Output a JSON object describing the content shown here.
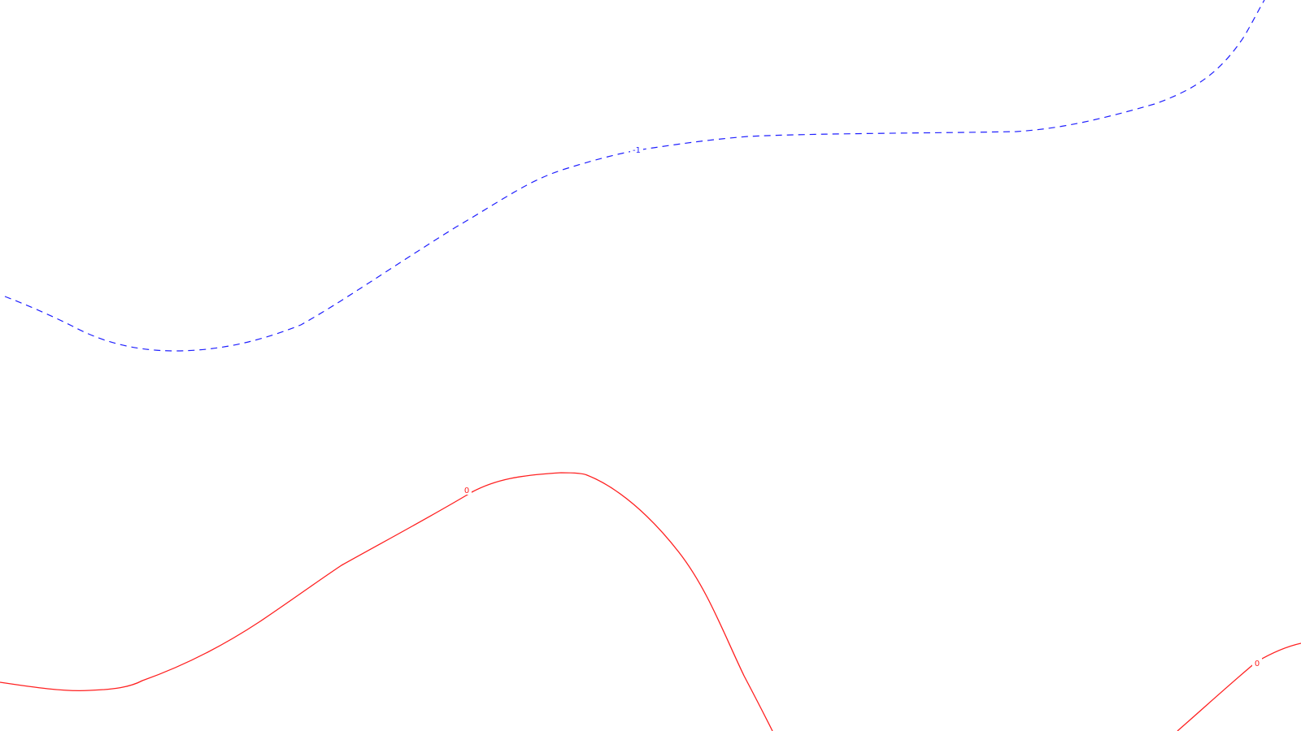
{
  "contours": [
    {
      "level": "-1",
      "label": "-1",
      "style": "dashed",
      "color": "#1f1fff"
    },
    {
      "level": "0",
      "label": "0",
      "style": "solid",
      "color": "#ff2020"
    },
    {
      "level": "0",
      "label": "0",
      "style": "solid",
      "color": "#ff2020"
    }
  ],
  "background": "#ffffff"
}
